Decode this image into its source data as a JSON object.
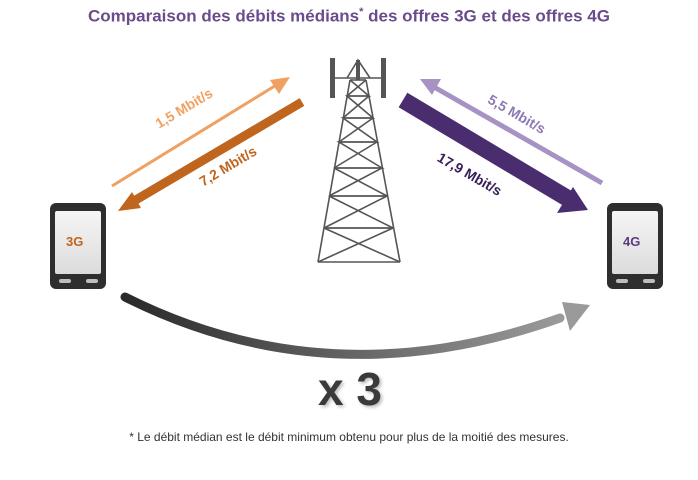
{
  "title": {
    "main_before": "Comparaison des débits médians",
    "asterisk": "*",
    "main_after": " des offres 3G et des offres 4G"
  },
  "phones": {
    "left_label": "3G",
    "right_label": "4G"
  },
  "arrows": {
    "upload_3g": "1,5 Mbit/s",
    "download_3g": "7,2 Mbit/s",
    "upload_4g": "5,5 Mbit/s",
    "download_4g": "17,9 Mbit/s"
  },
  "multiplier": "x 3",
  "footnote": "* Le débit médian est le débit minimum obtenu pour plus de la moitié des mesures.",
  "colors": {
    "title": "#6a4c8c",
    "orange_light": "#f0a060",
    "orange_dark": "#c0651e",
    "purple_light": "#a693c4",
    "purple_dark": "#4a2d6e",
    "phone_body": "#2e2e2e",
    "tower": "#555555"
  }
}
